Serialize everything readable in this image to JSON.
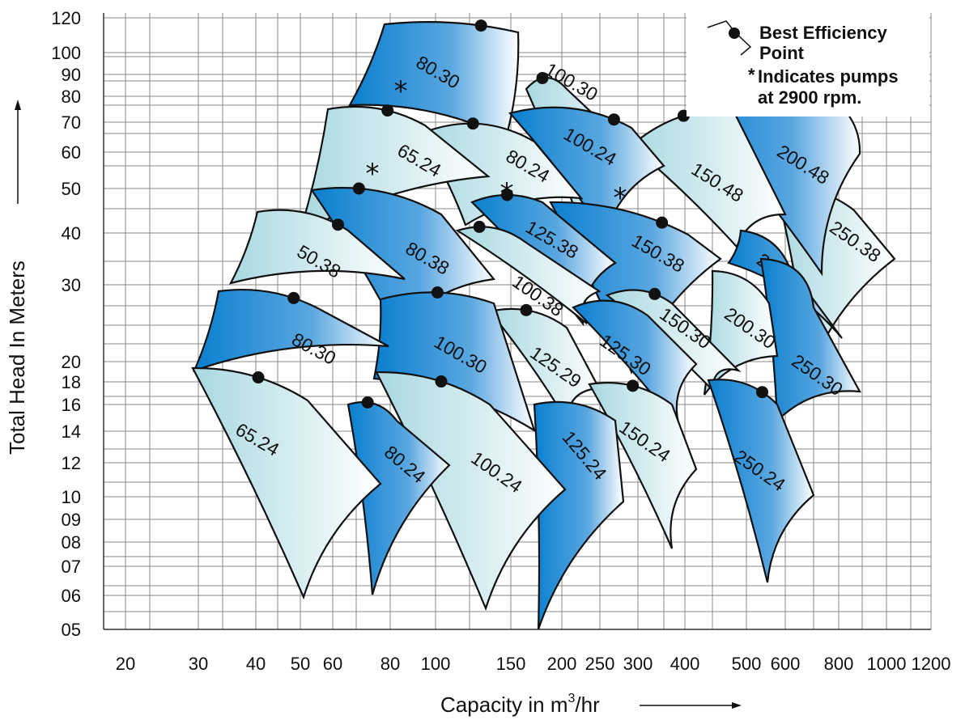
{
  "colors": {
    "light": "#a8d8e0",
    "dark": "#0a7fcf",
    "white": "#ffffff",
    "edge": "#111111",
    "grid": "#888888"
  },
  "chart_data": {
    "type": "coverage",
    "xlabel": "Capacity in m³/hr",
    "xlabel_parts": {
      "before": "Capacity in m",
      "sup": "3",
      "after": "/hr"
    },
    "ylabel": "Total Head In Meters",
    "x_scale": "log",
    "y_scale": "log",
    "x_tick_labels": [
      "20",
      "30",
      "40",
      "50",
      "60",
      "80",
      "100",
      "150",
      "200",
      "250",
      "300",
      "400",
      "500",
      "600",
      "800",
      "1000",
      "1200"
    ],
    "y_tick_labels": [
      "05",
      "06",
      "07",
      "08",
      "09",
      "10",
      "12",
      "14",
      "16",
      "18",
      "20",
      "30",
      "40",
      "50",
      "60",
      "70",
      "80",
      "90",
      "100",
      "120"
    ],
    "grid": true,
    "legend": {
      "position": "top-right",
      "bep_label_1": "Best Efficiency",
      "bep_label_2": "Point",
      "star_symbol": "*",
      "note_1": "Indicates pumps",
      "note_2": "at 2900 rpm."
    },
    "star_symbol": "*",
    "series": [
      {
        "label": "250.38",
        "shade": "light",
        "star": false
      },
      {
        "label": "200.48",
        "shade": "dark",
        "star": false
      },
      {
        "label": "150.48",
        "shade": "light",
        "star": false
      },
      {
        "label": "100.30",
        "shade": "light",
        "star": false
      },
      {
        "label": "80.30",
        "shade": "dark",
        "star": true
      },
      {
        "label": "100.24",
        "shade": "dark",
        "star": true
      },
      {
        "label": "80.24",
        "shade": "light",
        "star": true
      },
      {
        "label": "65.24",
        "shade": "light",
        "star": true
      },
      {
        "label": "200.38",
        "shade": "dark",
        "star": false
      },
      {
        "label": "250.30",
        "shade": "dark",
        "star": false
      },
      {
        "label": "150.38",
        "shade": "dark",
        "star": false
      },
      {
        "label": "125.38",
        "shade": "dark",
        "star": false
      },
      {
        "label": "80.38",
        "shade": "dark",
        "star": false
      },
      {
        "label": "50.38",
        "shade": "light",
        "star": false
      },
      {
        "label": "100.38",
        "shade": "light",
        "star": false
      },
      {
        "label": "200.30",
        "shade": "light",
        "star": false
      },
      {
        "label": "150.30",
        "shade": "light",
        "star": false
      },
      {
        "label": "125.30",
        "shade": "dark",
        "star": false
      },
      {
        "label": "125.29",
        "shade": "light",
        "star": false
      },
      {
        "label": "100.30",
        "shade": "dark",
        "star": false
      },
      {
        "label": "80.30",
        "shade": "dark",
        "star": false
      },
      {
        "label": "250.24",
        "shade": "dark",
        "star": false
      },
      {
        "label": "150.24",
        "shade": "light",
        "star": false
      },
      {
        "label": "125.24",
        "shade": "dark",
        "star": false
      },
      {
        "label": "100.24",
        "shade": "light",
        "star": false
      },
      {
        "label": "80.24",
        "shade": "dark",
        "star": false
      },
      {
        "label": "65.24",
        "shade": "light",
        "star": false
      }
    ]
  }
}
